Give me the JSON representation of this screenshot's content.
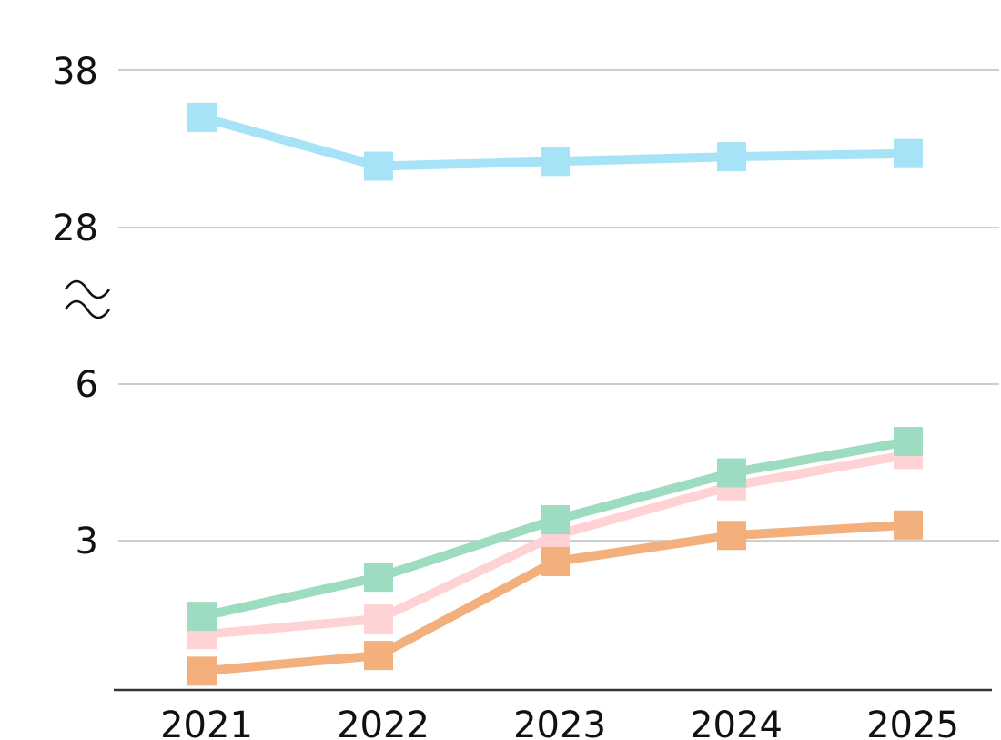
{
  "chart_data": {
    "type": "line",
    "title": "",
    "xlabel": "",
    "ylabel": "",
    "categories": [
      "2021",
      "2022",
      "2023",
      "2024",
      "2025"
    ],
    "y_axis": {
      "broken": true,
      "lower_range": [
        0,
        6
      ],
      "upper_range": [
        28,
        38
      ],
      "tick_labels": [
        "3",
        "6",
        "28",
        "38"
      ]
    },
    "grid": true,
    "legend": "none",
    "series": [
      {
        "color": "#a6e3f7",
        "marker": "square",
        "values": [
          35.0,
          31.9,
          32.2,
          32.5,
          32.7
        ]
      },
      {
        "color": "#9ddcc0",
        "marker": "square",
        "values": [
          1.55,
          2.3,
          3.4,
          4.3,
          4.9
        ]
      },
      {
        "color": "#ffd3d6",
        "marker": "square",
        "values": [
          1.2,
          1.5,
          3.1,
          4.05,
          4.65
        ]
      },
      {
        "color": "#f3b07c",
        "marker": "square",
        "values": [
          0.5,
          0.8,
          2.6,
          3.1,
          3.3
        ]
      }
    ]
  }
}
